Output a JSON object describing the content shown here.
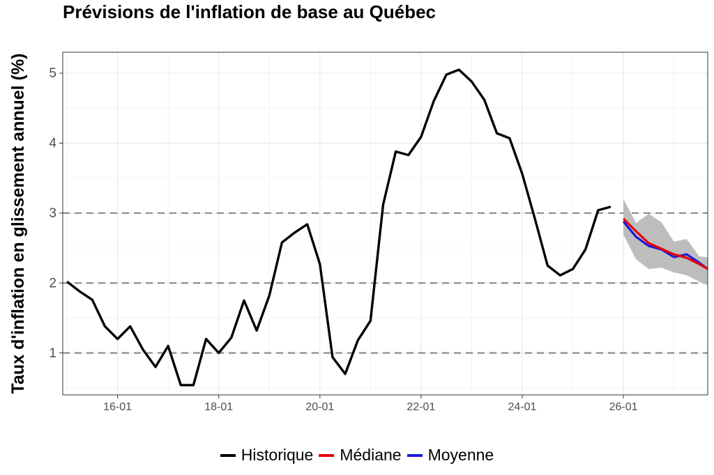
{
  "chart_data": {
    "type": "line",
    "title": "Prévisions de l'inflation de base au Québec",
    "xlabel": "",
    "ylabel": "Taux d'inflation en glissement annuel (%)",
    "x_tick_labels": [
      "16-01",
      "18-01",
      "20-01",
      "22-01",
      "24-01",
      "26-01"
    ],
    "y_tick_labels": [
      "1",
      "2",
      "3",
      "4",
      "5"
    ],
    "y_ticks": [
      1,
      2,
      3,
      4,
      5
    ],
    "ylim": [
      0.4,
      5.3
    ],
    "xlim": [
      "2014-12",
      "2027-09"
    ],
    "grid": true,
    "legend_position": "bottom",
    "reference_lines": [
      1,
      2,
      3
    ],
    "colors": {
      "historique": "#000000",
      "mediane": "#e60000",
      "moyenne": "#1a1ad6",
      "band": "#bdbdbd",
      "reference": "#8c8c8c"
    },
    "series": [
      {
        "name": "Historique",
        "x": [
          "2015-01",
          "2015-04",
          "2015-07",
          "2015-10",
          "2016-01",
          "2016-04",
          "2016-07",
          "2016-10",
          "2017-01",
          "2017-04",
          "2017-07",
          "2017-10",
          "2018-01",
          "2018-04",
          "2018-07",
          "2018-10",
          "2019-01",
          "2019-04",
          "2019-07",
          "2019-10",
          "2020-01",
          "2020-04",
          "2020-07",
          "2020-10",
          "2021-01",
          "2021-04",
          "2021-07",
          "2021-10",
          "2022-01",
          "2022-04",
          "2022-07",
          "2022-10",
          "2023-01",
          "2023-04",
          "2023-07",
          "2023-10",
          "2024-01",
          "2024-04",
          "2024-07",
          "2024-10",
          "2025-01",
          "2025-04",
          "2025-07",
          "2025-10"
        ],
        "values": [
          2.02,
          1.88,
          1.76,
          1.38,
          1.2,
          1.38,
          1.05,
          0.8,
          1.1,
          0.54,
          0.54,
          1.2,
          1.0,
          1.22,
          1.75,
          1.32,
          1.82,
          2.58,
          2.72,
          2.84,
          2.27,
          0.94,
          0.7,
          1.18,
          1.46,
          3.12,
          3.88,
          3.83,
          4.09,
          4.6,
          4.98,
          5.05,
          4.88,
          4.62,
          4.14,
          4.07,
          3.56,
          2.92,
          2.25,
          2.11,
          2.2,
          2.48,
          3.04,
          3.09
        ]
      },
      {
        "name": "Médiane",
        "x": [
          "2026-01",
          "2026-04",
          "2026-07",
          "2026-10",
          "2027-01",
          "2027-04",
          "2027-07",
          "2027-09"
        ],
        "values": [
          2.92,
          2.74,
          2.57,
          2.49,
          2.41,
          2.36,
          2.27,
          2.2
        ]
      },
      {
        "name": "Moyenne",
        "x": [
          "2026-01",
          "2026-04",
          "2026-07",
          "2026-10",
          "2027-01",
          "2027-04",
          "2027-07",
          "2027-09"
        ],
        "values": [
          2.88,
          2.66,
          2.53,
          2.48,
          2.37,
          2.41,
          2.29,
          2.2
        ]
      }
    ],
    "band": {
      "x": [
        "2026-01",
        "2026-04",
        "2026-07",
        "2026-10",
        "2027-01",
        "2027-04",
        "2027-07",
        "2027-09"
      ],
      "lower": [
        2.69,
        2.34,
        2.2,
        2.22,
        2.15,
        2.11,
        2.02,
        1.97
      ],
      "upper": [
        3.2,
        2.86,
        2.99,
        2.87,
        2.59,
        2.63,
        2.38,
        2.37
      ]
    }
  }
}
